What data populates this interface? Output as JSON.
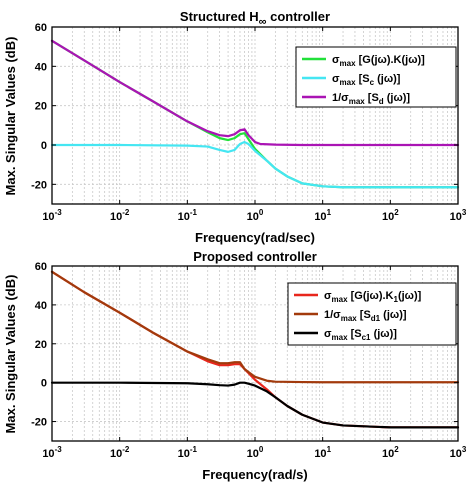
{
  "chart_data": [
    {
      "type": "line",
      "title_main": "Structured H",
      "title_sub": "∞",
      "title_rest": " controller",
      "xlabel": "Frequency(rad/sec)",
      "ylabel": "Max. Singular Values (dB)",
      "xscale": "log",
      "xlim": [
        0.001,
        1000
      ],
      "ylim": [
        -30,
        60
      ],
      "yticks": [
        -20,
        0,
        20,
        40,
        60
      ],
      "xticks": [
        0.001,
        0.01,
        0.1,
        1,
        10,
        100,
        1000
      ],
      "xtick_base": "10",
      "xtick_exponents": [
        "-3",
        "-2",
        "-1",
        "0",
        "1",
        "2",
        "3"
      ],
      "grid": true,
      "legend_position": "top-right",
      "series": [
        {
          "color": "#22e03a",
          "legend_parts": [
            [
              "σ",
              "base"
            ],
            [
              "max",
              "sub"
            ],
            [
              " [G(jω).K(jω)]",
              "base"
            ]
          ],
          "x": [
            0.001,
            0.003,
            0.01,
            0.03,
            0.1,
            0.2,
            0.3,
            0.4,
            0.5,
            0.6,
            0.7,
            0.8,
            1,
            1.5,
            2,
            3,
            5,
            10,
            20,
            100,
            1000
          ],
          "y": [
            53,
            43,
            32,
            22.5,
            12,
            6.5,
            3.5,
            2.5,
            3.5,
            5.5,
            6,
            3,
            -2,
            -8,
            -12,
            -16,
            -19.5,
            -21,
            -21.5,
            -21.5,
            -21.5
          ]
        },
        {
          "color": "#45e6f2",
          "legend_parts": [
            [
              "σ",
              "base"
            ],
            [
              "max",
              "sub"
            ],
            [
              " [S",
              "base"
            ],
            [
              "c",
              "sub"
            ],
            [
              " (jω)]",
              "base"
            ]
          ],
          "x": [
            0.001,
            0.01,
            0.1,
            0.2,
            0.3,
            0.4,
            0.5,
            0.6,
            0.7,
            0.8,
            1,
            1.5,
            2,
            3,
            5,
            10,
            20,
            100,
            1000
          ],
          "y": [
            0,
            0,
            -0.3,
            -0.8,
            -2.5,
            -3.5,
            -2.5,
            0.5,
            1.5,
            0.5,
            -3,
            -8,
            -12,
            -16,
            -19.5,
            -21,
            -21.5,
            -21.5,
            -21.5
          ]
        },
        {
          "color": "#aa14b4",
          "legend_parts": [
            [
              "1/σ",
              "base"
            ],
            [
              "max",
              "sub"
            ],
            [
              " [S",
              "base"
            ],
            [
              "d",
              "sub"
            ],
            [
              " (jω)]",
              "base"
            ]
          ],
          "x": [
            0.001,
            0.003,
            0.01,
            0.03,
            0.1,
            0.2,
            0.3,
            0.4,
            0.5,
            0.6,
            0.7,
            0.8,
            1,
            1.2,
            2,
            5,
            10,
            100,
            1000
          ],
          "y": [
            53,
            43,
            32,
            22.5,
            12,
            7,
            5,
            4.5,
            5.5,
            7.5,
            8,
            5,
            1.5,
            0.5,
            0.2,
            0,
            0,
            0,
            0
          ]
        }
      ]
    },
    {
      "type": "line",
      "title_main": "Proposed controller",
      "title_sub": "",
      "title_rest": "",
      "xlabel": "Frequency(rad/s)",
      "ylabel": "Max. Singular Values (dB)",
      "xscale": "log",
      "xlim": [
        0.001,
        1000
      ],
      "ylim": [
        -30,
        60
      ],
      "yticks": [
        -20,
        0,
        20,
        40,
        60
      ],
      "xticks": [
        0.001,
        0.01,
        0.1,
        1,
        10,
        100,
        1000
      ],
      "xtick_base": "10",
      "xtick_exponents": [
        "-3",
        "-2",
        "-1",
        "0",
        "1",
        "2",
        "3"
      ],
      "grid": true,
      "legend_position": "top-right",
      "series": [
        {
          "color": "#e8261c",
          "legend_parts": [
            [
              "σ",
              "base"
            ],
            [
              "max",
              "sub"
            ],
            [
              " [G(jω).K",
              "base"
            ],
            [
              "1",
              "sub"
            ],
            [
              "(jω)]",
              "base"
            ]
          ],
          "x": [
            0.001,
            0.003,
            0.01,
            0.03,
            0.1,
            0.2,
            0.3,
            0.4,
            0.5,
            0.6,
            0.7,
            0.8,
            1,
            1.5,
            2,
            3,
            5,
            10,
            20,
            100,
            1000
          ],
          "y": [
            57,
            46.5,
            36,
            26,
            16,
            11,
            9,
            9,
            9.5,
            9.5,
            7,
            5,
            1.5,
            -3.5,
            -7.5,
            -12,
            -16.5,
            -20.5,
            -22,
            -23,
            -23
          ]
        },
        {
          "color": "#a23a0c",
          "legend_parts": [
            [
              "1/σ",
              "base"
            ],
            [
              "max",
              "sub"
            ],
            [
              " [S",
              "base"
            ],
            [
              "d1",
              "sub"
            ],
            [
              " (jω)]",
              "base"
            ]
          ],
          "x": [
            0.001,
            0.003,
            0.01,
            0.03,
            0.1,
            0.2,
            0.3,
            0.4,
            0.5,
            0.6,
            0.7,
            0.8,
            1,
            1.5,
            2,
            5,
            10,
            100,
            1000
          ],
          "y": [
            57,
            46.5,
            36,
            26,
            16,
            12,
            10,
            10,
            10.5,
            10.5,
            7,
            5.5,
            3,
            1,
            0.5,
            0.3,
            0.2,
            0.2,
            0.2
          ]
        },
        {
          "color": "#000000",
          "legend_parts": [
            [
              "σ",
              "base"
            ],
            [
              "max",
              "sub"
            ],
            [
              " [S",
              "base"
            ],
            [
              "c1",
              "sub"
            ],
            [
              " (jω)]",
              "base"
            ]
          ],
          "x": [
            0.001,
            0.01,
            0.1,
            0.2,
            0.3,
            0.4,
            0.5,
            0.6,
            0.7,
            0.8,
            1,
            1.5,
            2,
            3,
            5,
            10,
            20,
            100,
            1000
          ],
          "y": [
            0,
            0,
            -0.3,
            -0.8,
            -1.3,
            -1.5,
            -1,
            0,
            0,
            -0.5,
            -1.5,
            -4.5,
            -7.5,
            -12,
            -16.5,
            -20.5,
            -22,
            -23,
            -23
          ]
        }
      ]
    }
  ]
}
